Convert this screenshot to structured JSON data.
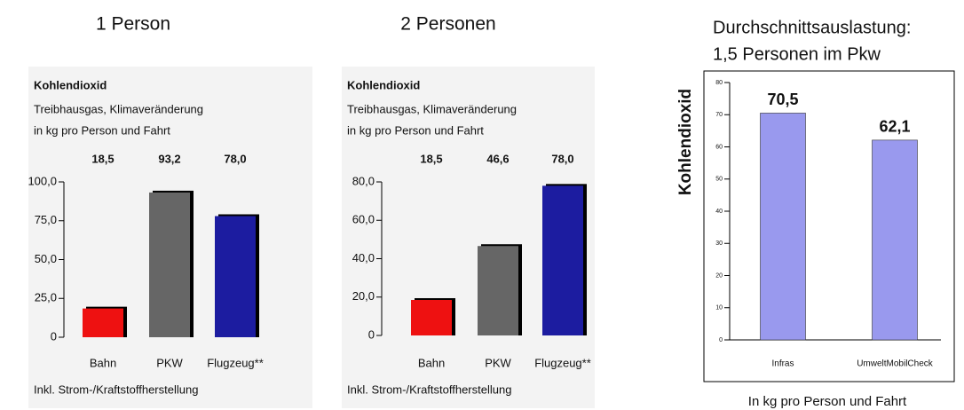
{
  "chart_data": [
    {
      "type": "bar",
      "title": "1 Person",
      "subtitle": "Kohlendioxid",
      "notes": [
        "Treibhausgas, Klimaveränderung",
        "in kg pro Person und Fahrt"
      ],
      "categories": [
        "Bahn",
        "PKW",
        "Flugzeug**"
      ],
      "values": [
        18.5,
        93.2,
        78.0
      ],
      "value_labels": [
        "18,5",
        "93,2",
        "78,0"
      ],
      "colors": [
        "#ee1111",
        "#666666",
        "#1c1ca0"
      ],
      "ylim": [
        0,
        100
      ],
      "yticks": [
        0,
        {
          "value": 25,
          "label": "25,0"
        },
        {
          "value": 50,
          "label": "50,0"
        },
        {
          "value": 75,
          "label": "75,0"
        },
        {
          "value": 100,
          "label": "100,0"
        }
      ],
      "footnote": "Inkl. Strom-/Kraftstoffherstellung"
    },
    {
      "type": "bar",
      "title": "2 Personen",
      "subtitle": "Kohlendioxid",
      "notes": [
        "Treibhausgas, Klimaveränderung",
        "in kg pro Person und Fahrt"
      ],
      "categories": [
        "Bahn",
        "PKW",
        "Flugzeug**"
      ],
      "values": [
        18.5,
        46.6,
        78.0
      ],
      "value_labels": [
        "18,5",
        "46,6",
        "78,0"
      ],
      "colors": [
        "#ee1111",
        "#666666",
        "#1c1ca0"
      ],
      "ylim": [
        0,
        80
      ],
      "yticks": [
        0,
        {
          "value": 20,
          "label": "20,0"
        },
        {
          "value": 40,
          "label": "40,0"
        },
        {
          "value": 60,
          "label": "60,0"
        },
        {
          "value": 80,
          "label": "80,0"
        }
      ],
      "footnote": "Inkl. Strom-/Kraftstoffherstellung"
    },
    {
      "type": "bar",
      "title": [
        "Durchschnittsauslastung:",
        "1,5 Personen im Pkw"
      ],
      "ylabel": "Kohlendioxid",
      "xlabel": "In kg pro Person und Fahrt",
      "categories": [
        "Infras",
        "UmweltMobilCheck"
      ],
      "values": [
        70.5,
        62.1
      ],
      "value_labels": [
        "70,5",
        "62,1"
      ],
      "colors": [
        "#9999ee",
        "#9999ee"
      ],
      "ylim": [
        0,
        80
      ],
      "yticks": [
        0,
        10,
        20,
        30,
        40,
        50,
        60,
        70,
        80
      ]
    }
  ]
}
